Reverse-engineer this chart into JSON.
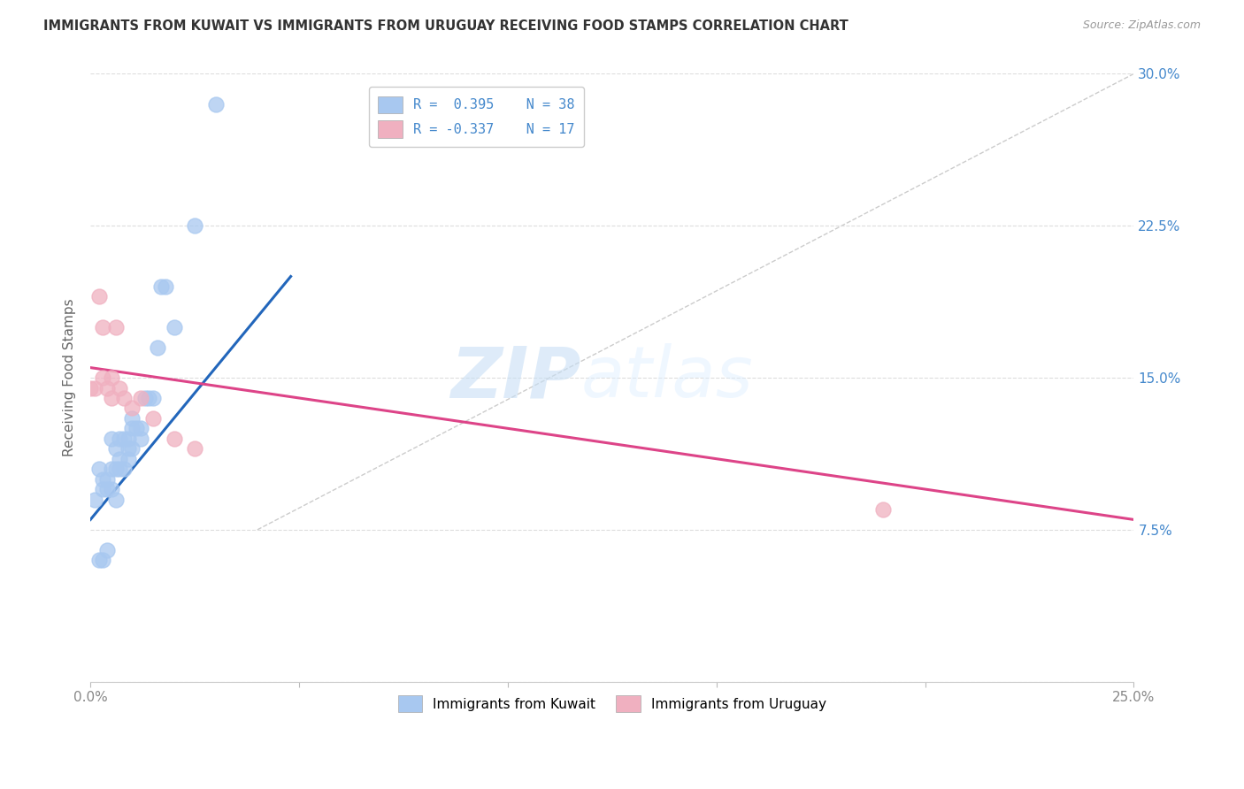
{
  "title": "IMMIGRANTS FROM KUWAIT VS IMMIGRANTS FROM URUGUAY RECEIVING FOOD STAMPS CORRELATION CHART",
  "source": "Source: ZipAtlas.com",
  "ylabel": "Receiving Food Stamps",
  "xlim": [
    0.0,
    0.25
  ],
  "ylim": [
    0.0,
    0.3
  ],
  "xticks": [
    0.0,
    0.05,
    0.1,
    0.15,
    0.2,
    0.25
  ],
  "xticklabels": [
    "0.0%",
    "",
    "",
    "",
    "",
    "25.0%"
  ],
  "yticks": [
    0.0,
    0.075,
    0.15,
    0.225,
    0.3
  ],
  "yticklabels_right": [
    "",
    "7.5%",
    "15.0%",
    "22.5%",
    "30.0%"
  ],
  "legend_label1": "R =  0.395    N = 38",
  "legend_label2": "R = -0.337    N = 17",
  "legend_label_bottom1": "Immigrants from Kuwait",
  "legend_label_bottom2": "Immigrants from Uruguay",
  "color_kuwait": "#a8c8f0",
  "color_uruguay": "#f0b0c0",
  "color_blue_text": "#4488cc",
  "color_pink_text": "#cc4477",
  "watermark_zip": "ZIP",
  "watermark_atlas": "atlas",
  "kuwait_x": [
    0.001,
    0.002,
    0.003,
    0.003,
    0.004,
    0.004,
    0.005,
    0.005,
    0.005,
    0.006,
    0.006,
    0.006,
    0.007,
    0.007,
    0.007,
    0.008,
    0.008,
    0.009,
    0.009,
    0.009,
    0.01,
    0.01,
    0.01,
    0.011,
    0.012,
    0.012,
    0.013,
    0.014,
    0.015,
    0.016,
    0.017,
    0.018,
    0.02,
    0.025,
    0.03,
    0.002,
    0.003,
    0.004
  ],
  "kuwait_y": [
    0.09,
    0.105,
    0.1,
    0.095,
    0.1,
    0.095,
    0.12,
    0.095,
    0.105,
    0.115,
    0.105,
    0.09,
    0.12,
    0.11,
    0.105,
    0.12,
    0.105,
    0.12,
    0.115,
    0.11,
    0.13,
    0.125,
    0.115,
    0.125,
    0.125,
    0.12,
    0.14,
    0.14,
    0.14,
    0.165,
    0.195,
    0.195,
    0.175,
    0.225,
    0.285,
    0.06,
    0.06,
    0.065
  ],
  "uruguay_x": [
    0.0,
    0.001,
    0.002,
    0.003,
    0.004,
    0.005,
    0.006,
    0.007,
    0.008,
    0.01,
    0.012,
    0.015,
    0.02,
    0.025,
    0.003,
    0.005,
    0.19
  ],
  "uruguay_y": [
    0.145,
    0.145,
    0.19,
    0.15,
    0.145,
    0.15,
    0.175,
    0.145,
    0.14,
    0.135,
    0.14,
    0.13,
    0.12,
    0.115,
    0.175,
    0.14,
    0.085
  ],
  "blue_line_x": [
    0.0,
    0.048
  ],
  "blue_line_y": [
    0.08,
    0.2
  ],
  "pink_line_x": [
    0.0,
    0.25
  ],
  "pink_line_y": [
    0.155,
    0.08
  ],
  "diag_line_x": [
    0.04,
    0.25
  ],
  "diag_line_y": [
    0.075,
    0.3
  ]
}
